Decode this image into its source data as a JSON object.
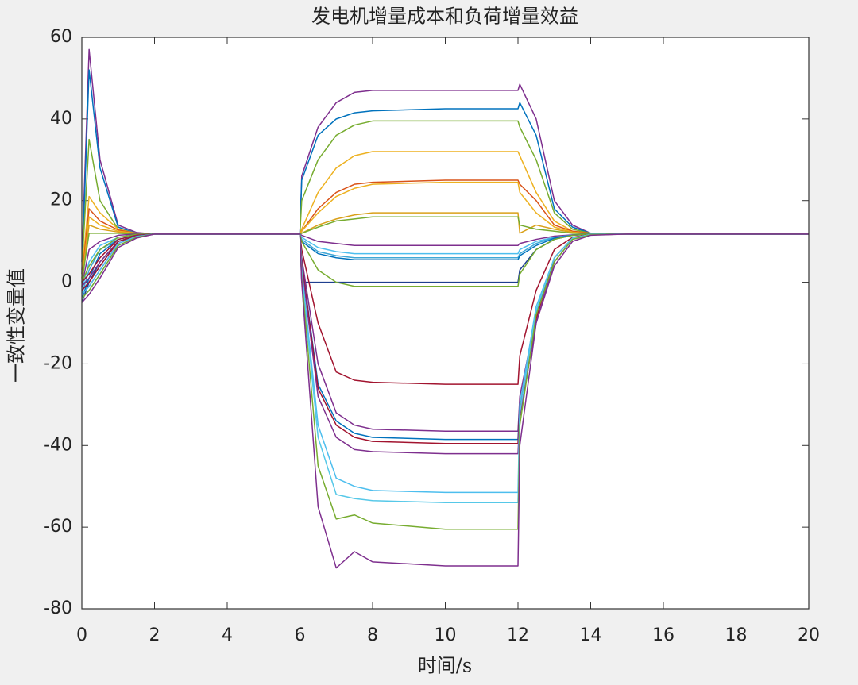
{
  "chart_data": {
    "type": "line",
    "title": "发电机增量成本和负荷增量效益",
    "xlabel": "时间/s",
    "ylabel": "一致性变量值",
    "x": [
      0,
      0.2,
      0.5,
      1,
      1.5,
      2,
      6,
      6.05,
      6.5,
      7,
      7.5,
      8,
      10,
      12,
      12.05,
      12.5,
      13,
      13.5,
      14,
      15,
      20
    ],
    "xlim": [
      0,
      20
    ],
    "xticks": [
      0,
      2,
      4,
      6,
      8,
      10,
      12,
      14,
      16,
      18,
      20
    ],
    "ylim": [
      -80,
      60
    ],
    "yticks": [
      -80,
      -60,
      -40,
      -20,
      0,
      20,
      40,
      60
    ],
    "grid": false,
    "series": [
      {
        "color": "#7E2F8E",
        "values": [
          5,
          57,
          30,
          14,
          12.2,
          11.8,
          11.8,
          26,
          38,
          44,
          46.5,
          47,
          47,
          47,
          48.5,
          40,
          20,
          14,
          12,
          11.8,
          11.8
        ]
      },
      {
        "color": "#0072BD",
        "values": [
          2,
          52,
          28,
          13.5,
          12,
          11.8,
          11.8,
          25,
          36,
          40,
          41.5,
          42,
          42.5,
          42.5,
          44,
          36,
          18,
          13.5,
          12,
          11.8,
          11.8
        ]
      },
      {
        "color": "#77AC30",
        "values": [
          3,
          35,
          20,
          13,
          12,
          11.8,
          11.8,
          20,
          30,
          36,
          38.5,
          39.5,
          39.5,
          39.5,
          38,
          30,
          17,
          13,
          12,
          11.8,
          11.8
        ]
      },
      {
        "color": "#EDB120",
        "values": [
          2,
          21,
          17,
          13,
          12,
          11.8,
          11.8,
          13,
          22,
          28,
          31,
          32,
          32,
          32,
          31,
          22,
          15,
          12.5,
          12,
          11.8,
          11.8
        ]
      },
      {
        "color": "#D95319",
        "values": [
          1,
          18,
          15,
          12.8,
          12,
          11.8,
          11.8,
          12.5,
          18,
          22,
          24,
          24.5,
          25,
          25,
          24,
          20,
          14,
          12.5,
          12,
          11.8,
          11.8
        ]
      },
      {
        "color": "#EDB120",
        "values": [
          0,
          16,
          14,
          12.5,
          12,
          11.8,
          11.8,
          12.5,
          17,
          21,
          23,
          24,
          24.5,
          24.5,
          22,
          17,
          13.5,
          12.3,
          11.9,
          11.8,
          11.8
        ]
      },
      {
        "color": "#D9A019",
        "values": [
          1,
          14,
          13,
          12.3,
          11.9,
          11.8,
          11.8,
          12,
          14,
          15.5,
          16.5,
          17,
          17,
          17,
          12,
          14,
          13,
          12.2,
          11.9,
          11.8,
          11.8
        ]
      },
      {
        "color": "#77AC30",
        "values": [
          0,
          12,
          12,
          12,
          11.8,
          11.8,
          11.8,
          12,
          13.5,
          15,
          15.5,
          16,
          16,
          16,
          14,
          13,
          12.5,
          12,
          11.9,
          11.8,
          11.8
        ]
      },
      {
        "color": "#7E2F8E",
        "values": [
          -1,
          8,
          10,
          11.5,
          11.8,
          11.8,
          11.8,
          11.5,
          10,
          9.5,
          9,
          9,
          9,
          9,
          9.5,
          10.5,
          11.3,
          11.6,
          11.8,
          11.8,
          11.8
        ]
      },
      {
        "color": "#4DBEEE",
        "values": [
          -2,
          5,
          9,
          11,
          11.6,
          11.8,
          11.8,
          11,
          8.5,
          7.5,
          7,
          7,
          7,
          7,
          8,
          10,
          11,
          11.5,
          11.8,
          11.8,
          11.8
        ]
      },
      {
        "color": "#3FA7D6",
        "values": [
          -3,
          3,
          8,
          10.5,
          11.5,
          11.8,
          11.8,
          10.5,
          7.5,
          6.5,
          6,
          6,
          6,
          6,
          7,
          9.5,
          11,
          11.5,
          11.8,
          11.8,
          11.8
        ]
      },
      {
        "color": "#0072BD",
        "values": [
          -4,
          1,
          7,
          10.5,
          11.5,
          11.8,
          11.8,
          10,
          7,
          6,
          5.5,
          5.5,
          5.5,
          5.5,
          6.5,
          9,
          10.8,
          11.5,
          11.8,
          11.8,
          11.8
        ]
      },
      {
        "color": "#1F3F8F",
        "values": [
          -5,
          0,
          5,
          10,
          11.3,
          11.8,
          11.8,
          0,
          0,
          0,
          0,
          0,
          0,
          0,
          3,
          8,
          10.5,
          11.5,
          11.8,
          11.8,
          11.8
        ]
      },
      {
        "color": "#77AC30",
        "values": [
          0,
          4,
          8,
          11,
          11.7,
          11.8,
          11.8,
          10,
          3,
          0,
          -1,
          -1,
          -1,
          -1,
          2,
          8,
          10.5,
          11.5,
          11.8,
          11.8,
          11.8
        ]
      },
      {
        "color": "#A2142F",
        "values": [
          0,
          2,
          6,
          10.5,
          11.5,
          11.8,
          11.8,
          8,
          -10,
          -22,
          -24,
          -24.5,
          -25,
          -25,
          -18,
          -2,
          8,
          11,
          11.7,
          11.8,
          11.8
        ]
      },
      {
        "color": "#7E2F8E",
        "values": [
          -1,
          1,
          5,
          10,
          11.4,
          11.8,
          11.8,
          6,
          -20,
          -32,
          -35,
          -36,
          -36.5,
          -36.5,
          -28,
          -8,
          6,
          10.8,
          11.7,
          11.8,
          11.8
        ]
      },
      {
        "color": "#0072BD",
        "values": [
          -2,
          0,
          4,
          10,
          11.3,
          11.8,
          11.8,
          5,
          -25,
          -34,
          -37,
          -38,
          -38.5,
          -38.5,
          -30,
          -8,
          6,
          10.8,
          11.7,
          11.8,
          11.8
        ]
      },
      {
        "color": "#A2142F",
        "values": [
          -2,
          0,
          4,
          10,
          11.3,
          11.8,
          11.8,
          5,
          -26,
          -35,
          -38,
          -39,
          -39.5,
          -39.5,
          -31,
          -9,
          6,
          10.8,
          11.7,
          11.8,
          11.8
        ]
      },
      {
        "color": "#7E2F8E",
        "values": [
          -3,
          -1,
          3,
          9.5,
          11.2,
          11.8,
          11.8,
          4,
          -28,
          -38,
          -41,
          -41.5,
          -42,
          -42,
          -33,
          -10,
          5,
          10.5,
          11.6,
          11.8,
          11.8
        ]
      },
      {
        "color": "#4DBEEE",
        "values": [
          -3,
          -1,
          3,
          9.5,
          11.2,
          11.8,
          11.8,
          3,
          -35,
          -48,
          -50,
          -51,
          -51.5,
          -51.5,
          -30,
          -6,
          6,
          10.8,
          11.7,
          11.8,
          11.8
        ]
      },
      {
        "color": "#56C8E8",
        "values": [
          -4,
          -2,
          2,
          9,
          11,
          11.8,
          11.8,
          2,
          -38,
          -52,
          -53,
          -53.5,
          -54,
          -54,
          -32,
          -7,
          6,
          10.8,
          11.7,
          11.8,
          11.8
        ]
      },
      {
        "color": "#77AC30",
        "values": [
          -4,
          -2,
          2,
          9,
          11,
          11.8,
          11.8,
          1,
          -45,
          -58,
          -57,
          -59,
          -60.5,
          -60.5,
          -35,
          -8,
          5,
          10.5,
          11.6,
          11.8,
          11.8
        ]
      },
      {
        "color": "#7E2F8E",
        "values": [
          -5,
          -3,
          1,
          8.5,
          10.8,
          11.8,
          11.8,
          0,
          -55,
          -70,
          -66,
          -68.5,
          -69.5,
          -69.5,
          -40,
          -10,
          4,
          10,
          11.5,
          11.8,
          11.8
        ]
      }
    ]
  }
}
